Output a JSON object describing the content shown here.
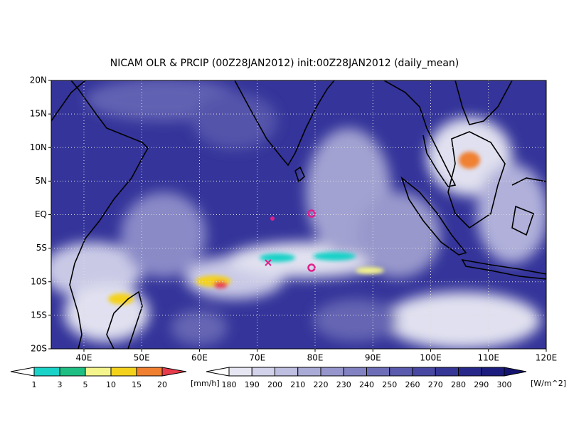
{
  "title": "NICAM OLR & PRCIP (00Z28JAN2012) init:00Z28JAN2012 (daily_mean)",
  "map": {
    "xlim": [
      34.34,
      120
    ],
    "ylim": [
      -20,
      20
    ],
    "lon_ticks": [
      {
        "value": 40,
        "label": "40E"
      },
      {
        "value": 50,
        "label": "50E"
      },
      {
        "value": 60,
        "label": "60E"
      },
      {
        "value": 70,
        "label": "70E"
      },
      {
        "value": 80,
        "label": "80E"
      },
      {
        "value": 90,
        "label": "90E"
      },
      {
        "value": 100,
        "label": "100E"
      },
      {
        "value": 110,
        "label": "110E"
      },
      {
        "value": 120,
        "label": "120E"
      }
    ],
    "lat_ticks": [
      {
        "value": 20,
        "label": "20N"
      },
      {
        "value": 15,
        "label": "15N"
      },
      {
        "value": 10,
        "label": "10N"
      },
      {
        "value": 5,
        "label": "5N"
      },
      {
        "value": 0,
        "label": "EQ"
      },
      {
        "value": -5,
        "label": "5S"
      },
      {
        "value": -10,
        "label": "10S"
      },
      {
        "value": -15,
        "label": "15S"
      },
      {
        "value": -20,
        "label": "20S"
      }
    ]
  },
  "precip_colorbar": {
    "levels": [
      1,
      3,
      5,
      10,
      15,
      20
    ],
    "unit": "[mm/h]",
    "colors": [
      "#ffffff",
      "#19d2c8",
      "#1fbf84",
      "#f4f48c",
      "#f4d21c",
      "#f08030",
      "#e83c4c"
    ]
  },
  "olr_colorbar": {
    "levels": [
      180,
      190,
      200,
      210,
      220,
      230,
      240,
      250,
      260,
      270,
      280,
      290,
      300
    ],
    "unit": "[W/m^2]",
    "colors": [
      "#ffffff",
      "#e6e6f2",
      "#d2d2ea",
      "#bebee0",
      "#aaaad6",
      "#9696cc",
      "#8282c2",
      "#6e6eb8",
      "#5a5aae",
      "#4848a2",
      "#363696",
      "#28288a",
      "#1c1c7e",
      "#141470"
    ]
  }
}
